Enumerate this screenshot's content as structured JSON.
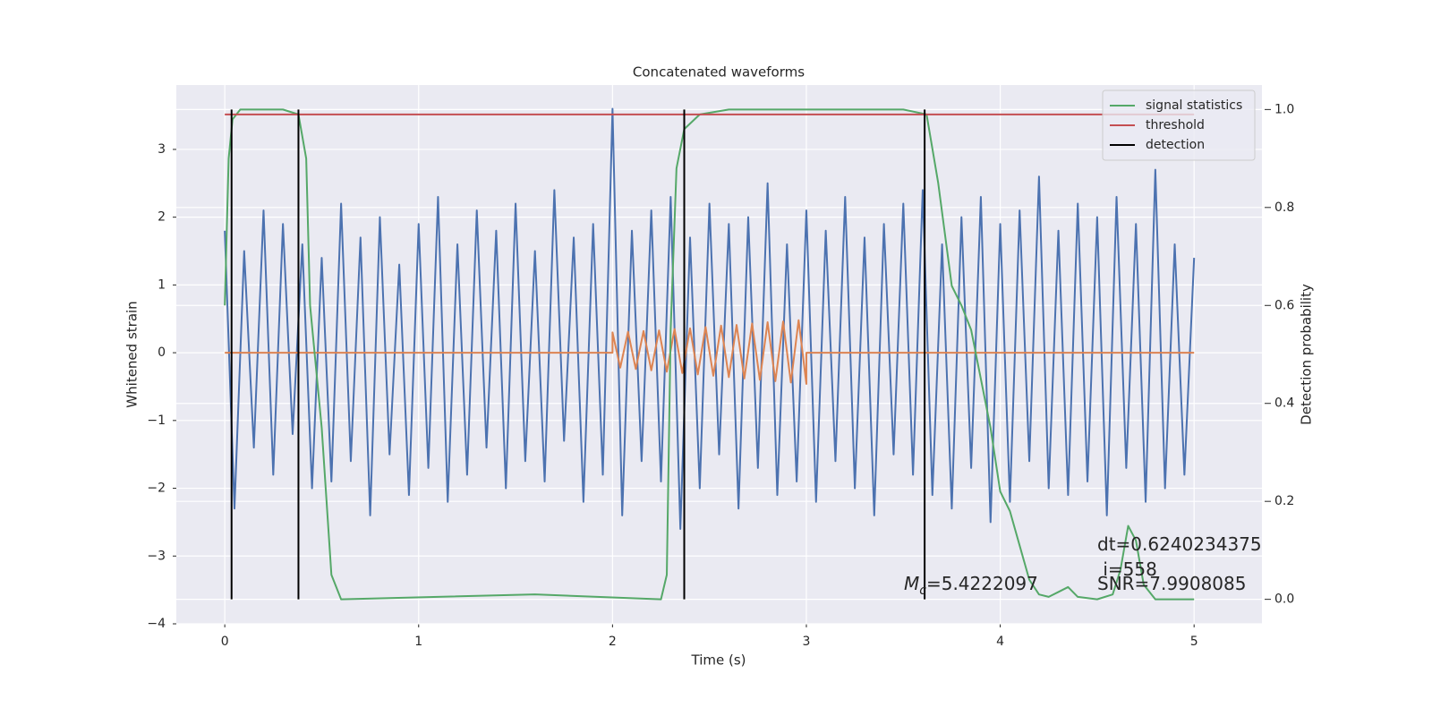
{
  "chart_data": {
    "type": "line",
    "title": "Concatenated waveforms",
    "xlabel": "Time (s)",
    "ylabel": "Whitened strain",
    "y2label": "Detection probability",
    "xlim": [
      -0.25,
      5.35
    ],
    "ylim": [
      -4,
      3.95
    ],
    "y2lim": [
      -0.05,
      1.05
    ],
    "xticks": [
      0,
      1,
      2,
      3,
      4,
      5
    ],
    "yticks": [
      {
        "value": -4,
        "label": "−4"
      },
      {
        "value": -3,
        "label": "−3"
      },
      {
        "value": -2,
        "label": "−2"
      },
      {
        "value": -1,
        "label": "−1"
      },
      0,
      1,
      2,
      3
    ],
    "y2ticks": [
      {
        "value": 0,
        "label": "0.0"
      },
      0.2,
      0.4,
      0.6,
      0.8,
      {
        "value": 1,
        "label": "1.0"
      }
    ],
    "grid": true,
    "legend_position": "upper-right",
    "series": [
      {
        "color": "#4c72b0",
        "x": [
          0,
          0.05,
          0.1,
          0.15,
          0.2,
          0.25,
          0.3,
          0.35,
          0.4,
          0.45,
          0.5,
          0.55,
          0.6,
          0.65,
          0.7,
          0.75,
          0.8,
          0.85,
          0.9,
          0.95,
          1,
          1.05,
          1.1,
          1.15,
          1.2,
          1.25,
          1.3,
          1.35,
          1.4,
          1.45,
          1.5,
          1.55,
          1.6,
          1.65,
          1.7,
          1.75,
          1.8,
          1.85,
          1.9,
          1.95,
          2,
          2.05,
          2.1,
          2.15,
          2.2,
          2.25,
          2.3,
          2.35,
          2.4,
          2.45,
          2.5,
          2.55,
          2.6,
          2.65,
          2.7,
          2.75,
          2.8,
          2.85,
          2.9,
          2.95,
          3,
          3.05,
          3.1,
          3.15,
          3.2,
          3.25,
          3.3,
          3.35,
          3.4,
          3.45,
          3.5,
          3.55,
          3.6,
          3.65,
          3.7,
          3.75,
          3.8,
          3.85,
          3.9,
          3.95,
          4,
          4.05,
          4.1,
          4.15,
          4.2,
          4.25,
          4.3,
          4.35,
          4.4,
          4.45,
          4.5,
          4.55,
          4.6,
          4.65,
          4.7,
          4.75,
          4.8,
          4.85,
          4.9,
          4.95,
          5
        ],
        "values": [
          1.8,
          -2.3,
          1.5,
          -1.4,
          2.1,
          -1.8,
          1.9,
          -1.2,
          1.6,
          -2.0,
          1.4,
          -1.9,
          2.2,
          -1.6,
          1.7,
          -2.4,
          2.0,
          -1.5,
          1.3,
          -2.1,
          1.9,
          -1.7,
          2.3,
          -2.2,
          1.6,
          -1.8,
          2.1,
          -1.4,
          1.8,
          -2.0,
          2.2,
          -1.6,
          1.5,
          -1.9,
          2.4,
          -1.3,
          1.7,
          -2.2,
          1.9,
          -1.8,
          3.6,
          -2.4,
          1.8,
          -1.6,
          2.1,
          -1.9,
          2.3,
          -2.6,
          1.7,
          -2.0,
          2.2,
          -1.5,
          1.9,
          -2.3,
          2.0,
          -1.7,
          2.5,
          -2.1,
          1.6,
          -1.9,
          2.1,
          -2.2,
          1.8,
          -1.6,
          2.3,
          -2.0,
          1.7,
          -2.4,
          1.9,
          -1.5,
          2.2,
          -1.8,
          2.4,
          -2.1,
          1.6,
          -2.3,
          2.0,
          -1.7,
          2.3,
          -2.5,
          1.9,
          -2.2,
          2.1,
          -1.6,
          2.6,
          -2.0,
          1.8,
          -2.1,
          2.2,
          -1.9,
          2.0,
          -2.4,
          2.3,
          -1.7,
          1.9,
          -2.2,
          2.7,
          -2.0,
          1.6,
          -1.8,
          1.4
        ]
      },
      {
        "color": "#dd8452",
        "x": [
          0,
          2,
          2,
          2.04,
          2.08,
          2.12,
          2.16,
          2.2,
          2.24,
          2.28,
          2.32,
          2.36,
          2.4,
          2.44,
          2.48,
          2.52,
          2.56,
          2.6,
          2.64,
          2.68,
          2.72,
          2.76,
          2.8,
          2.84,
          2.88,
          2.92,
          2.96,
          3,
          3,
          5
        ],
        "values": [
          0,
          0,
          0.3,
          -0.22,
          0.31,
          -0.24,
          0.32,
          -0.26,
          0.33,
          -0.28,
          0.35,
          -0.3,
          0.36,
          -0.32,
          0.38,
          -0.34,
          0.4,
          -0.36,
          0.41,
          -0.38,
          0.43,
          -0.4,
          0.45,
          -0.42,
          0.46,
          -0.44,
          0.48,
          -0.46,
          0,
          0
        ]
      },
      {
        "name": "signal statistics",
        "color": "#55a868",
        "axis": "y2",
        "x": [
          0,
          0.02,
          0.04,
          0.08,
          0.3,
          0.38,
          0.42,
          0.44,
          0.5,
          0.55,
          0.6,
          1.6,
          2.25,
          2.28,
          2.3,
          2.33,
          2.37,
          2.45,
          2.6,
          3.5,
          3.62,
          3.68,
          3.75,
          3.8,
          3.85,
          3.9,
          3.95,
          4,
          4.05,
          4.1,
          4.15,
          4.2,
          4.25,
          4.3,
          4.35,
          4.4,
          4.5,
          4.58,
          4.62,
          4.66,
          4.7,
          4.74,
          4.8,
          5
        ],
        "values": [
          0.6,
          0.9,
          0.98,
          1,
          1,
          0.99,
          0.9,
          0.6,
          0.35,
          0.05,
          0,
          0.01,
          0,
          0.05,
          0.55,
          0.88,
          0.96,
          0.99,
          1,
          1,
          0.99,
          0.85,
          0.64,
          0.6,
          0.55,
          0.45,
          0.35,
          0.22,
          0.18,
          0.11,
          0.04,
          0.01,
          0.005,
          0.015,
          0.025,
          0.005,
          0,
          0.01,
          0.06,
          0.15,
          0.12,
          0.03,
          0,
          0
        ]
      },
      {
        "name": "threshold",
        "color": "#c44e52",
        "axis": "y2",
        "x": [
          0,
          5
        ],
        "values": [
          0.99,
          0.99
        ]
      },
      {
        "name": "detection",
        "color": "#000000",
        "axis": "y2",
        "kind": "vlines",
        "x": [
          0.035,
          0.38,
          2.37,
          3.61
        ],
        "ymin": 0,
        "ymax": 1
      }
    ],
    "mass_annotation": {
      "symbol": "M",
      "subscript": "c",
      "text": "=5.4222097"
    },
    "annotations": [
      "dt=0.6240234375",
      " i=558",
      "SNR=7.9908085"
    ]
  }
}
